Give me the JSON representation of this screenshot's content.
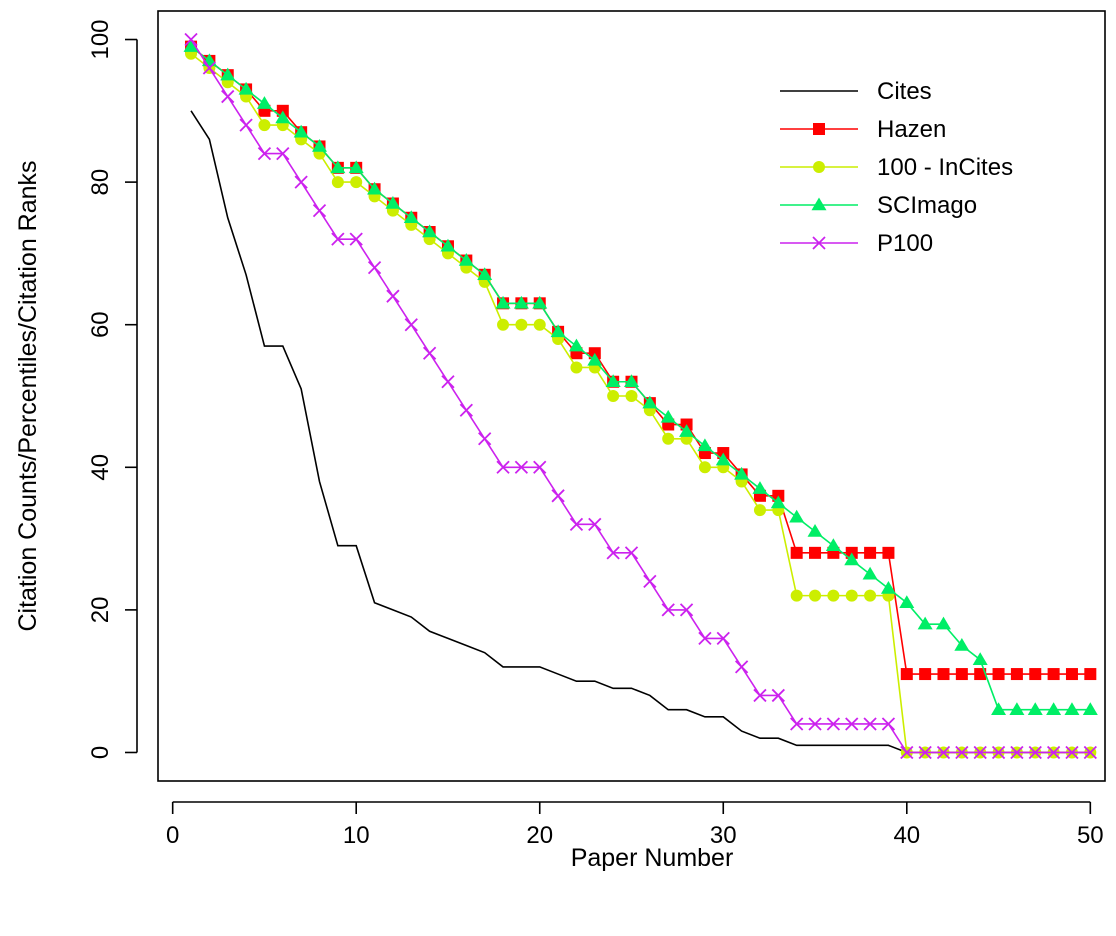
{
  "chart_data": {
    "type": "line",
    "xlabel": "Paper Number",
    "ylabel": "Citation Counts/Percentiles/Citation Ranks",
    "xlim": [
      -0.8,
      50.8
    ],
    "ylim": [
      -4,
      104
    ],
    "x_ticks": [
      0,
      10,
      20,
      30,
      40,
      50
    ],
    "y_ticks": [
      0,
      20,
      40,
      60,
      80,
      100
    ],
    "x_tick_labels": [
      "0",
      "10",
      "20",
      "30",
      "40",
      "50"
    ],
    "y_tick_labels": [
      "0",
      "20",
      "40",
      "60",
      "80",
      "100"
    ],
    "grid": false,
    "legend_position": "top-right",
    "x": [
      1,
      2,
      3,
      4,
      5,
      6,
      7,
      8,
      9,
      10,
      11,
      12,
      13,
      14,
      15,
      16,
      17,
      18,
      19,
      20,
      21,
      22,
      23,
      24,
      25,
      26,
      27,
      28,
      29,
      30,
      31,
      32,
      33,
      34,
      35,
      36,
      37,
      38,
      39,
      40,
      41,
      42,
      43,
      44,
      45,
      46,
      47,
      48,
      49,
      50
    ],
    "series": [
      {
        "name": "Cites",
        "color": "#000000",
        "marker": "none",
        "values": [
          90,
          86,
          75,
          67,
          57,
          57,
          51,
          38,
          29,
          29,
          21,
          20,
          19,
          17,
          16,
          15,
          14,
          12,
          12,
          12,
          11,
          10,
          10,
          9,
          9,
          8,
          6,
          6,
          5,
          5,
          3,
          2,
          2,
          1,
          1,
          1,
          1,
          1,
          1,
          0,
          0,
          0,
          0,
          0,
          0,
          0,
          0,
          0,
          0,
          0
        ]
      },
      {
        "name": "Hazen",
        "color": "#ff0000",
        "marker": "square",
        "values": [
          99,
          97,
          95,
          93,
          90,
          90,
          87,
          85,
          82,
          82,
          79,
          77,
          75,
          73,
          71,
          69,
          67,
          63,
          63,
          63,
          59,
          56,
          56,
          52,
          52,
          49,
          46,
          46,
          42,
          42,
          39,
          36,
          36,
          28,
          28,
          28,
          28,
          28,
          28,
          11,
          11,
          11,
          11,
          11,
          11,
          11,
          11,
          11,
          11,
          11
        ]
      },
      {
        "name": "100 - InCites",
        "color": "#ccee00",
        "marker": "circle",
        "values": [
          98,
          96,
          94,
          92,
          88,
          88,
          86,
          84,
          80,
          80,
          78,
          76,
          74,
          72,
          70,
          68,
          66,
          60,
          60,
          60,
          58,
          54,
          54,
          50,
          50,
          48,
          44,
          44,
          40,
          40,
          38,
          34,
          34,
          22,
          22,
          22,
          22,
          22,
          22,
          0,
          0,
          0,
          0,
          0,
          0,
          0,
          0,
          0,
          0,
          0
        ]
      },
      {
        "name": "SCImago",
        "color": "#00ee66",
        "marker": "triangle",
        "values": [
          99,
          97,
          95,
          93,
          91,
          89,
          87,
          85,
          82,
          82,
          79,
          77,
          75,
          73,
          71,
          69,
          67,
          63,
          63,
          63,
          59,
          57,
          55,
          52,
          52,
          49,
          47,
          45,
          43,
          41,
          39,
          37,
          35,
          33,
          31,
          29,
          27,
          25,
          23,
          21,
          18,
          18,
          15,
          13,
          6,
          6,
          6,
          6,
          6,
          6
        ]
      },
      {
        "name": "P100",
        "color": "#cc22ee",
        "marker": "x",
        "values": [
          100,
          96,
          92,
          88,
          84,
          84,
          80,
          76,
          72,
          72,
          68,
          64,
          60,
          56,
          52,
          48,
          44,
          40,
          40,
          40,
          36,
          32,
          32,
          28,
          28,
          24,
          20,
          20,
          16,
          16,
          12,
          8,
          8,
          4,
          4,
          4,
          4,
          4,
          4,
          0,
          0,
          0,
          0,
          0,
          0,
          0,
          0,
          0,
          0,
          0
        ]
      }
    ]
  }
}
